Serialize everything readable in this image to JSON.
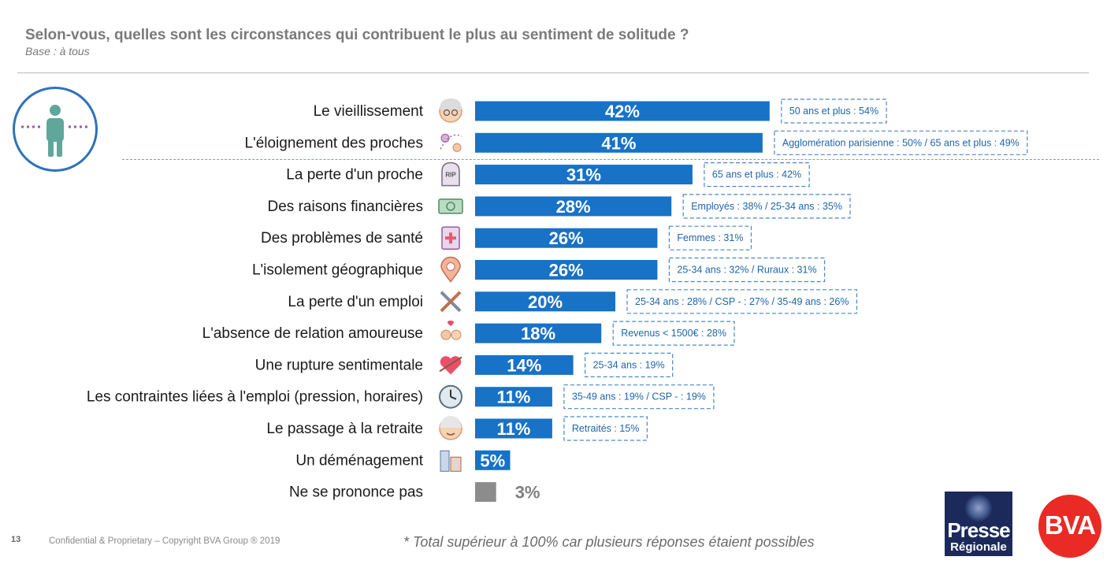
{
  "header": {
    "title": "Selon-vous, quelles sont les circonstances qui contribuent le plus au sentiment de solitude ?",
    "subtitle": "Base : à tous"
  },
  "colors": {
    "bar": "#1872c6",
    "bar_no_answer": "#8c8c8c",
    "note_border": "#4a86c6",
    "note_text": "#1e64aa"
  },
  "chart_data": {
    "type": "bar",
    "orientation": "horizontal",
    "categories": [
      "Le vieillissement",
      "L'éloignement des proches",
      "La perte d'un proche",
      "Des raisons financières",
      "Des problèmes de santé",
      "L'isolement géographique",
      "La perte d'un emploi",
      "L'absence de relation amoureuse",
      "Une rupture sentimentale",
      "Les contraintes liées à l'emploi (pression, horaires)",
      "Le passage à la retraite",
      "Un déménagement",
      "Ne se prononce pas"
    ],
    "values": [
      42,
      41,
      31,
      28,
      26,
      26,
      20,
      18,
      14,
      11,
      11,
      5,
      3
    ],
    "value_labels": [
      "42%",
      "41%",
      "31%",
      "28%",
      "26%",
      "26%",
      "20%",
      "18%",
      "14%",
      "11%",
      "11%",
      "5%",
      "3%"
    ],
    "notes": [
      "50 ans et plus : 54%",
      "Agglomération parisienne : 50% / 65 ans et plus : 49%",
      "65 ans et plus : 42%",
      "Employés : 38% / 25-34 ans : 35%",
      "Femmes : 31%",
      "25-34 ans : 32% / Ruraux : 31%",
      "25-34 ans : 28% / CSP - : 27% / 35-49 ans : 26%",
      "Revenus < 1500€ : 28%",
      "25-34 ans : 19%",
      "35-49 ans : 19% / CSP - : 19%",
      "Retraités : 15%",
      "",
      ""
    ],
    "icons": [
      "elderly-face-icon",
      "distant-people-icon",
      "tombstone-icon",
      "banknote-icon",
      "medical-file-icon",
      "location-pin-icon",
      "tools-icon",
      "couple-heart-icon",
      "broken-heart-icon",
      "clock-icon",
      "retiree-face-icon",
      "buildings-icon",
      ""
    ],
    "xlim": [
      0,
      42
    ],
    "grid": false,
    "legend": "none"
  },
  "footer": {
    "page_number": "13",
    "copyright": "Confidential & Proprietary – Copyright BVA Group ®  2019",
    "note": "* Total supérieur à 100% car plusieurs réponses étaient possibles"
  },
  "logos": {
    "presse_line1": "Presse",
    "presse_line2": "Régionale",
    "bva": "BVA"
  }
}
